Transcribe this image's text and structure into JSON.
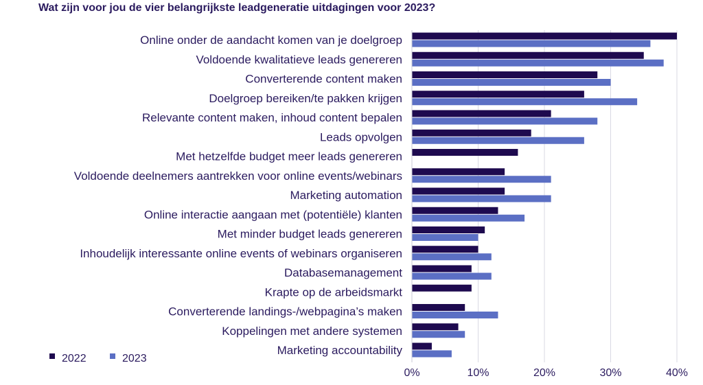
{
  "chart_data": {
    "type": "bar",
    "orientation": "horizontal",
    "title": "Wat zijn voor jou de vier belangrijkste leadgeneratie uitdagingen voor 2023?",
    "categories": [
      "Online onder de aandacht komen van je doelgroep",
      "Voldoende kwalitatieve  leads genereren",
      "Converterende content maken",
      "Doelgroep bereiken/te pakken krijgen",
      "Relevante content maken, inhoud content bepalen",
      "Leads opvolgen",
      "Met hetzelfde budget meer leads genereren",
      "Voldoende deelnemers aantrekken voor online events/webinars",
      "Marketing automation",
      "Online interactie aangaan met (potentiële) klanten",
      "Met minder budget leads genereren",
      "Inhoudelijk interessante online events of webinars organiseren",
      "Databasemanagement",
      "Krapte op de arbeidsmarkt",
      "Converterende landings-/webpagina’s maken",
      "Koppelingen met andere systemen",
      "Marketing accountability"
    ],
    "series": [
      {
        "name": "2022",
        "color": "#1e0a4f",
        "values": [
          40,
          35,
          28,
          26,
          21,
          18,
          16,
          14,
          14,
          13,
          11,
          10,
          9,
          9,
          8,
          7,
          3
        ]
      },
      {
        "name": "2023",
        "color": "#5b6fc4",
        "values": [
          36,
          38,
          30,
          34,
          28,
          26,
          null,
          21,
          21,
          17,
          10,
          12,
          12,
          null,
          13,
          8,
          6
        ]
      }
    ],
    "xlim": [
      0,
      40
    ],
    "xticks": [
      "0%",
      "10%",
      "20%",
      "30%",
      "40%"
    ],
    "xlabel": "",
    "ylabel": "",
    "grid": "vertical",
    "legend": "bottom-left"
  }
}
